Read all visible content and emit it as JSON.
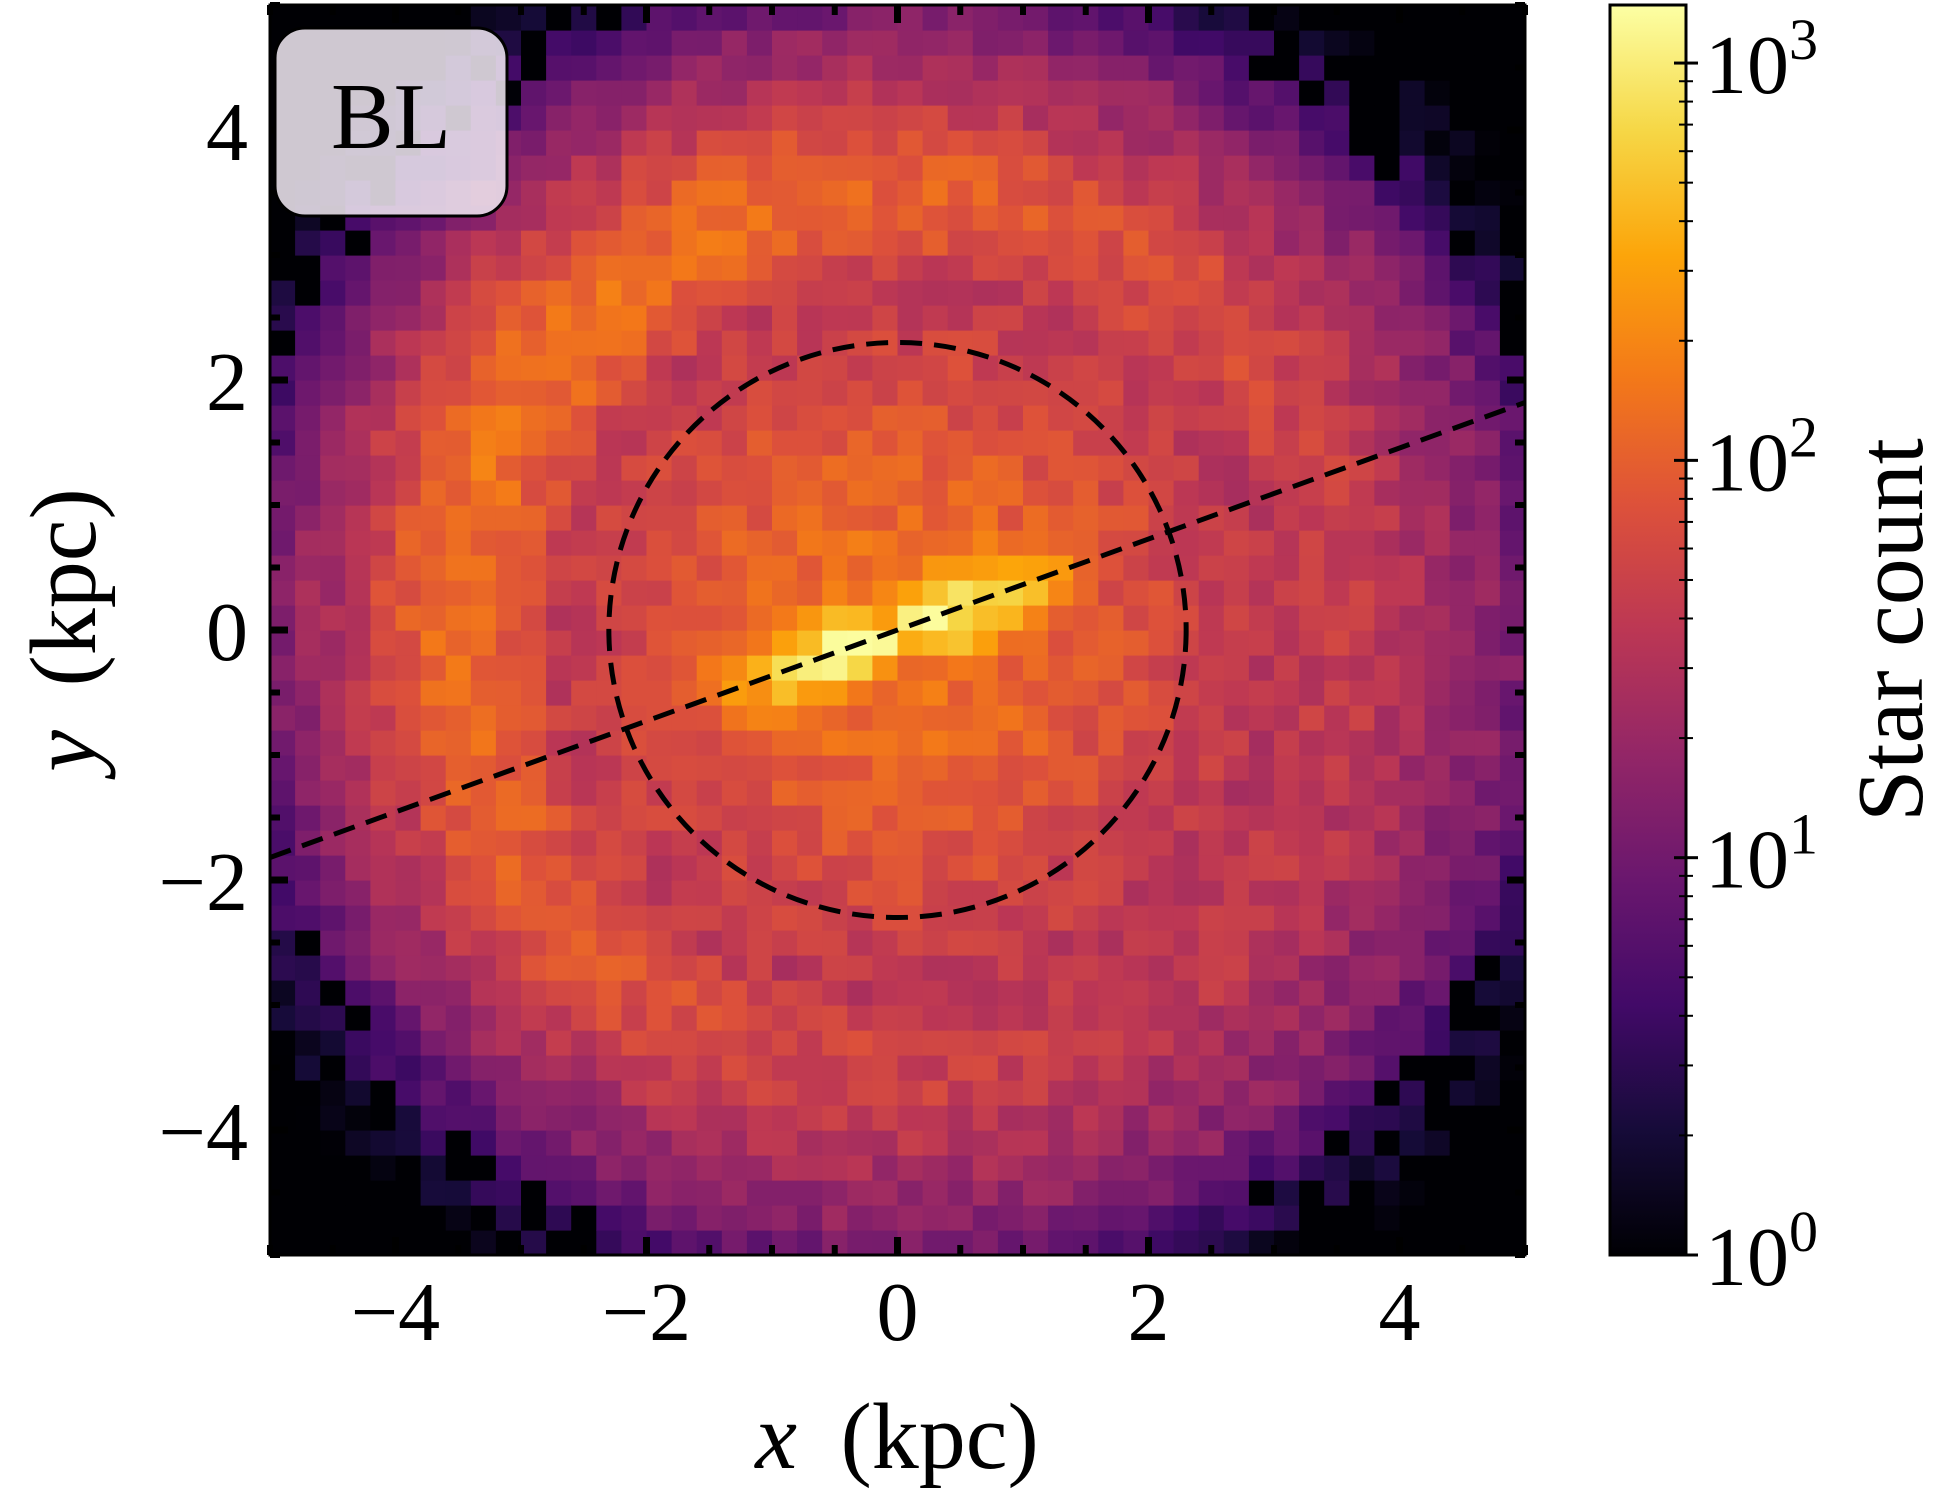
{
  "chart_data": {
    "type": "heatmap",
    "panel_label": "BL",
    "xlabel_var": "x",
    "xlabel_unit": "(kpc)",
    "ylabel_var": "y",
    "ylabel_unit": "(kpc)",
    "xlim": [
      -5,
      5
    ],
    "ylim": [
      -5,
      5
    ],
    "xticks": [
      -4,
      -2,
      0,
      2,
      4
    ],
    "yticks": [
      -4,
      -2,
      0,
      2,
      4
    ],
    "xtick_labels": [
      "−4",
      "−2",
      "0",
      "2",
      "4"
    ],
    "ytick_labels": [
      "−4",
      "−2",
      "0",
      "2",
      "4"
    ],
    "bins": 50,
    "colormap": "inferno",
    "colorbar": {
      "label": "Star count",
      "scale": "log",
      "range": [
        1,
        1400
      ],
      "tick_values": [
        1,
        10,
        100,
        1000
      ],
      "tick_exponents": [
        "0",
        "1",
        "2",
        "3"
      ],
      "tick_base": "10"
    },
    "density_model": {
      "background_log10": 1.05,
      "bar_angle_deg": 20,
      "bar_peak_log10": 3.1,
      "bar_half_length_kpc": 1.7,
      "inner_ring_peak_log10": 2.2,
      "outer_disc_peak_log10": 2.2,
      "outer_disc_radius_kpc": 3.5,
      "falloff_radius_kpc": 4.8
    },
    "annotations": {
      "circle_radius_kpc": 2.3,
      "bar_axis_angle_deg": 20,
      "style": "dashed",
      "color": "#000000"
    }
  }
}
